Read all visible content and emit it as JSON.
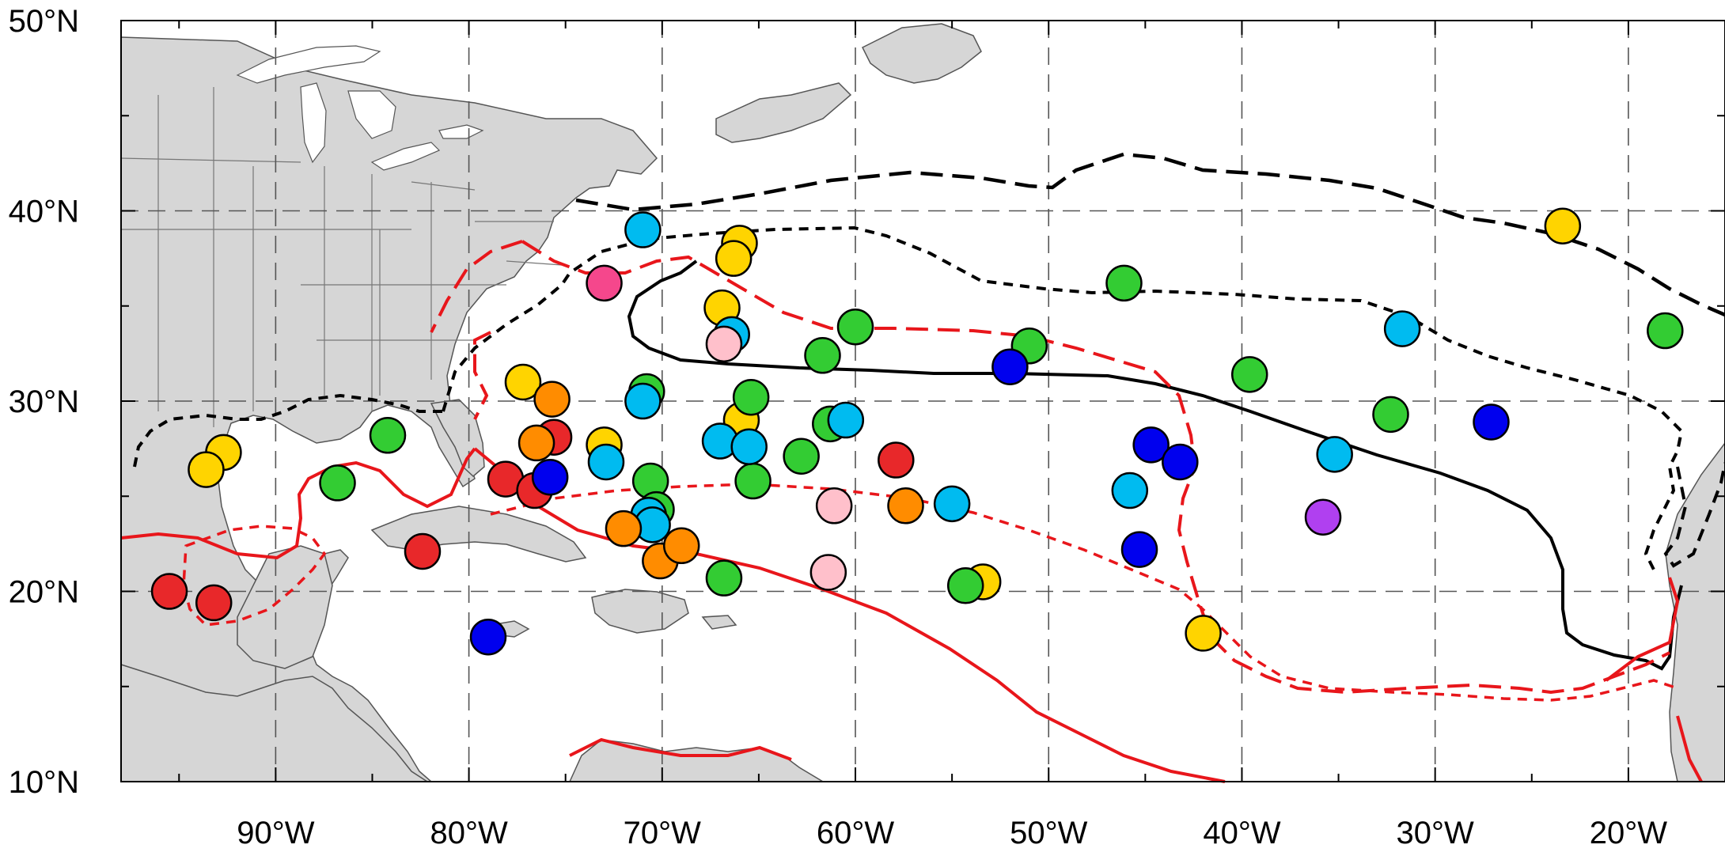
{
  "map": {
    "lon_range": [
      -98,
      -15
    ],
    "lat_range": [
      10,
      50
    ],
    "lat_grid": [
      10,
      20,
      30,
      40,
      50
    ],
    "lon_grid": [
      -90,
      -80,
      -70,
      -60,
      -50,
      -40,
      -30,
      -20
    ],
    "lat_labels": [
      "50°N",
      "40°N",
      "30°N",
      "20°N",
      "10°N"
    ],
    "lon_labels": [
      "90°W",
      "80°W",
      "70°W",
      "60°W",
      "50°W",
      "40°W",
      "30°W",
      "20°W"
    ]
  },
  "colors": {
    "land": "#d6d6d6",
    "red_contours": "#e8161b",
    "black_contours": "#000000"
  },
  "markers": [
    {
      "lon": -95.5,
      "lat": 20.0,
      "color": "#e8282a"
    },
    {
      "lon": -93.2,
      "lat": 19.4,
      "color": "#e8282a"
    },
    {
      "lon": -82.4,
      "lat": 22.1,
      "color": "#e8282a"
    },
    {
      "lon": -78.1,
      "lat": 25.9,
      "color": "#e8282a"
    },
    {
      "lon": -76.6,
      "lat": 25.3,
      "color": "#e8282a"
    },
    {
      "lon": -75.6,
      "lat": 28.1,
      "color": "#e8282a"
    },
    {
      "lon": -57.9,
      "lat": 26.9,
      "color": "#e8282a"
    },
    {
      "lon": -92.7,
      "lat": 27.3,
      "color": "#ffd400"
    },
    {
      "lon": -93.6,
      "lat": 26.4,
      "color": "#ffd400"
    },
    {
      "lon": -77.2,
      "lat": 31.0,
      "color": "#ffd400"
    },
    {
      "lon": -73.0,
      "lat": 27.7,
      "color": "#ffd400"
    },
    {
      "lon": -66.9,
      "lat": 34.9,
      "color": "#ffd400"
    },
    {
      "lon": -66.0,
      "lat": 38.3,
      "color": "#ffd400"
    },
    {
      "lon": -66.3,
      "lat": 37.5,
      "color": "#ffd400"
    },
    {
      "lon": -65.9,
      "lat": 29.0,
      "color": "#ffd400"
    },
    {
      "lon": -53.4,
      "lat": 20.5,
      "color": "#ffd400"
    },
    {
      "lon": -42.0,
      "lat": 17.8,
      "color": "#ffd400"
    },
    {
      "lon": -23.4,
      "lat": 39.2,
      "color": "#ffd400"
    },
    {
      "lon": -86.8,
      "lat": 25.7,
      "color": "#33cc33"
    },
    {
      "lon": -84.2,
      "lat": 28.2,
      "color": "#33cc33"
    },
    {
      "lon": -70.8,
      "lat": 30.5,
      "color": "#33cc33"
    },
    {
      "lon": -70.6,
      "lat": 25.8,
      "color": "#33cc33"
    },
    {
      "lon": -70.3,
      "lat": 24.3,
      "color": "#33cc33"
    },
    {
      "lon": -66.8,
      "lat": 20.7,
      "color": "#33cc33"
    },
    {
      "lon": -65.4,
      "lat": 30.2,
      "color": "#33cc33"
    },
    {
      "lon": -65.3,
      "lat": 25.8,
      "color": "#33cc33"
    },
    {
      "lon": -62.8,
      "lat": 27.1,
      "color": "#33cc33"
    },
    {
      "lon": -61.7,
      "lat": 32.4,
      "color": "#33cc33"
    },
    {
      "lon": -61.3,
      "lat": 28.8,
      "color": "#33cc33"
    },
    {
      "lon": -60.0,
      "lat": 33.9,
      "color": "#33cc33"
    },
    {
      "lon": -51.0,
      "lat": 32.9,
      "color": "#33cc33"
    },
    {
      "lon": -54.3,
      "lat": 20.3,
      "color": "#33cc33"
    },
    {
      "lon": -46.1,
      "lat": 36.2,
      "color": "#33cc33"
    },
    {
      "lon": -39.6,
      "lat": 31.4,
      "color": "#33cc33"
    },
    {
      "lon": -32.3,
      "lat": 29.3,
      "color": "#33cc33"
    },
    {
      "lon": -18.1,
      "lat": 33.7,
      "color": "#33cc33"
    },
    {
      "lon": -71.0,
      "lat": 39.0,
      "color": "#00bbf0"
    },
    {
      "lon": -72.9,
      "lat": 26.8,
      "color": "#00bbf0"
    },
    {
      "lon": -71.0,
      "lat": 30.0,
      "color": "#00bbf0"
    },
    {
      "lon": -70.7,
      "lat": 24.0,
      "color": "#00bbf0"
    },
    {
      "lon": -70.5,
      "lat": 23.5,
      "color": "#00bbf0"
    },
    {
      "lon": -66.4,
      "lat": 33.5,
      "color": "#00bbf0"
    },
    {
      "lon": -67.0,
      "lat": 27.9,
      "color": "#00bbf0"
    },
    {
      "lon": -65.5,
      "lat": 27.6,
      "color": "#00bbf0"
    },
    {
      "lon": -60.5,
      "lat": 29.0,
      "color": "#00bbf0"
    },
    {
      "lon": -55.0,
      "lat": 24.6,
      "color": "#00bbf0"
    },
    {
      "lon": -45.8,
      "lat": 25.3,
      "color": "#00bbf0"
    },
    {
      "lon": -35.2,
      "lat": 27.2,
      "color": "#00bbf0"
    },
    {
      "lon": -31.7,
      "lat": 33.8,
      "color": "#00bbf0"
    },
    {
      "lon": -75.8,
      "lat": 26.0,
      "color": "#0000ee"
    },
    {
      "lon": -79.0,
      "lat": 17.6,
      "color": "#0000ee"
    },
    {
      "lon": -52.0,
      "lat": 31.8,
      "color": "#0000ee"
    },
    {
      "lon": -44.7,
      "lat": 27.7,
      "color": "#0000ee"
    },
    {
      "lon": -43.2,
      "lat": 26.8,
      "color": "#0000ee"
    },
    {
      "lon": -45.3,
      "lat": 22.2,
      "color": "#0000ee"
    },
    {
      "lon": -27.1,
      "lat": 28.9,
      "color": "#0000ee"
    },
    {
      "lon": -75.7,
      "lat": 30.1,
      "color": "#ff8c00"
    },
    {
      "lon": -76.5,
      "lat": 27.8,
      "color": "#ff8c00"
    },
    {
      "lon": -72.0,
      "lat": 23.3,
      "color": "#ff8c00"
    },
    {
      "lon": -70.1,
      "lat": 21.6,
      "color": "#ff8c00"
    },
    {
      "lon": -69.0,
      "lat": 22.4,
      "color": "#ff8c00"
    },
    {
      "lon": -57.4,
      "lat": 24.5,
      "color": "#ff8c00"
    },
    {
      "lon": -66.8,
      "lat": 33.0,
      "color": "#ffc0cb"
    },
    {
      "lon": -61.1,
      "lat": 24.5,
      "color": "#ffc0cb"
    },
    {
      "lon": -61.4,
      "lat": 21.0,
      "color": "#ffc0cb"
    },
    {
      "lon": -73.0,
      "lat": 36.2,
      "color": "#f5478c"
    },
    {
      "lon": -35.8,
      "lat": 23.9,
      "color": "#b040f0"
    }
  ]
}
